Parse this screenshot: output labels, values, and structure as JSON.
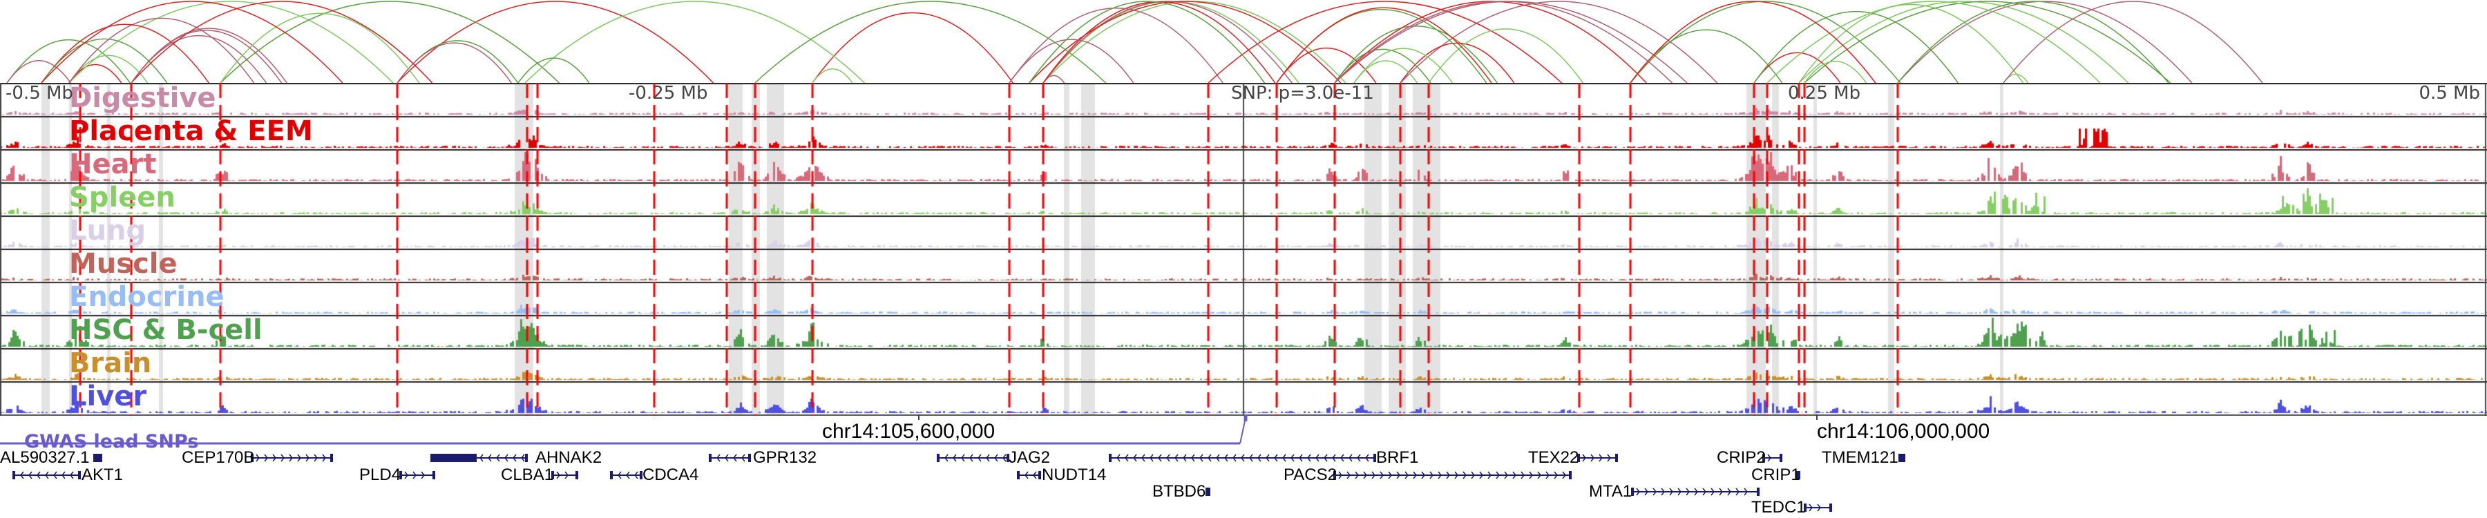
{
  "header_axis": {
    "left_far": "-0.5 Mb",
    "left_near": "-0.25 Mb",
    "snp": "SNP: p=3.0e-11",
    "right_near": "0.25 Mb",
    "right_far": "0.5 Mb"
  },
  "tracks": [
    {
      "name": "Digestive",
      "color": "#c98aa8"
    },
    {
      "name": "Placenta & EEM",
      "color": "#e00000"
    },
    {
      "name": "Heart",
      "color": "#d8697a"
    },
    {
      "name": "Spleen",
      "color": "#86cf65"
    },
    {
      "name": "Lung",
      "color": "#d9d0e8"
    },
    {
      "name": "Muscle",
      "color": "#c2635a"
    },
    {
      "name": "Endocrine",
      "color": "#96bdf5"
    },
    {
      "name": "HSC & B-cell",
      "color": "#4fa04f"
    },
    {
      "name": "Brain",
      "color": "#c99029"
    },
    {
      "name": "Liver",
      "color": "#5050e0"
    }
  ],
  "gwas": {
    "label": "GWAS lead SNPs",
    "color": "#6a5acd"
  },
  "coordinates": [
    "chr14:105,600,000",
    "chr14:106,000,000"
  ],
  "genes": [
    "AL590327.1",
    "AKT1",
    "CEP170B",
    "PLD4",
    "AHNAK2",
    "CLBA1",
    "CDCA4",
    "GPR132",
    "JAG2",
    "NUDT14",
    "BTBD6",
    "BRF1",
    "PACS2",
    "TEX22",
    "MTA1",
    "CRIP2",
    "CRIP1",
    "TMEM121",
    "TEDC1"
  ],
  "colors": {
    "highlight_line": "#ff0000",
    "gene": "#1a1a6e",
    "band": "#e3e3e3"
  }
}
